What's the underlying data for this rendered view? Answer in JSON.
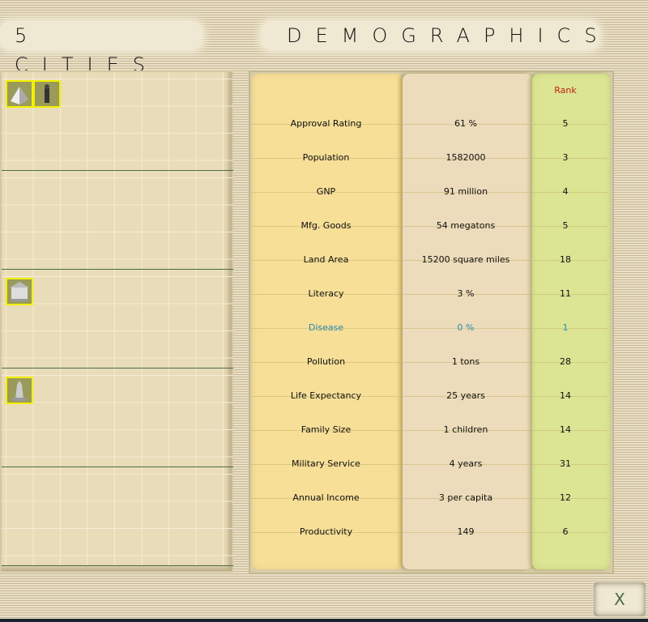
{
  "header": {
    "cities_title": "5 CITIES",
    "demographics_title": "DEMOGRAPHICS"
  },
  "cities": [
    {
      "buildings": [
        "pyramid-icon",
        "soldier-icon"
      ]
    },
    {
      "buildings": []
    },
    {
      "buildings": [
        "temple-icon"
      ]
    },
    {
      "buildings": [
        "monument-icon"
      ]
    },
    {
      "buildings": []
    }
  ],
  "table": {
    "rank_header": "Rank",
    "highlight_color": "#2a8ab0",
    "rows": [
      {
        "label": "Approval Rating",
        "value": "61 %",
        "rank": "5"
      },
      {
        "label": "Population",
        "value": "1582000",
        "rank": "3"
      },
      {
        "label": "GNP",
        "value": "91 million",
        "rank": "4"
      },
      {
        "label": "Mfg. Goods",
        "value": "54 megatons",
        "rank": "5"
      },
      {
        "label": "Land Area",
        "value": "15200 square miles",
        "rank": "18"
      },
      {
        "label": "Literacy",
        "value": "3 %",
        "rank": "11"
      },
      {
        "label": "Disease",
        "value": "0 %",
        "rank": "1",
        "highlight": true
      },
      {
        "label": "Pollution",
        "value": "1 tons",
        "rank": "28"
      },
      {
        "label": "Life Expectancy",
        "value": "25 years",
        "rank": "14"
      },
      {
        "label": "Family Size",
        "value": "1 children",
        "rank": "14"
      },
      {
        "label": "Military Service",
        "value": "4 years",
        "rank": "31"
      },
      {
        "label": "Annual Income",
        "value": "3 per capita",
        "rank": "12"
      },
      {
        "label": "Productivity",
        "value": "149",
        "rank": "6"
      }
    ]
  },
  "close_label": "X"
}
